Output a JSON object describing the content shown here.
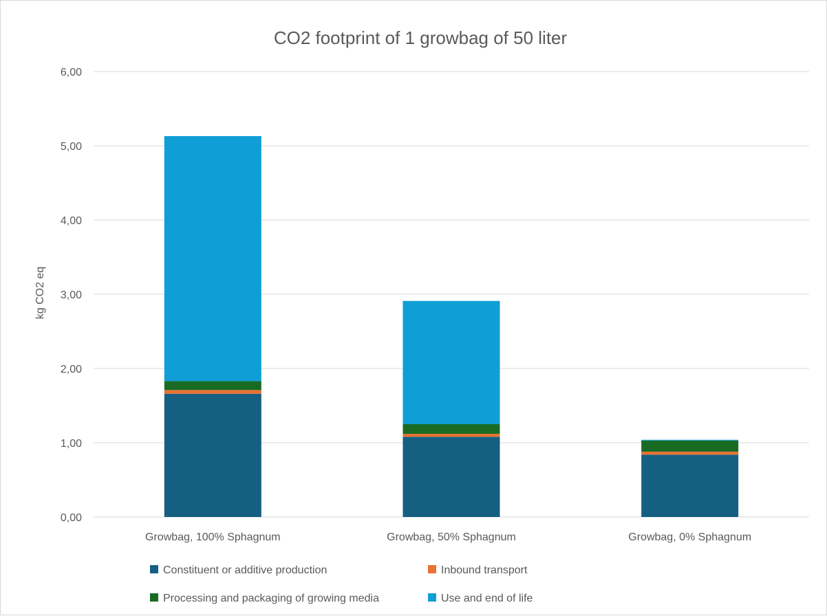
{
  "chart_data": {
    "type": "bar",
    "stacked": true,
    "title": "CO2 footprint of 1 growbag of 50 liter",
    "xlabel": "",
    "ylabel": "kg CO2 eq",
    "ylim": [
      0,
      6
    ],
    "yticks": [
      "0,00",
      "1,00",
      "2,00",
      "3,00",
      "4,00",
      "5,00",
      "6,00"
    ],
    "grid": true,
    "legend_position": "bottom",
    "categories": [
      "Growbag, 100% Sphagnum",
      "Growbag, 50% Sphagnum",
      "Growbag, 0% Sphagnum"
    ],
    "series": [
      {
        "name": "Constituent or additive production",
        "color": "#156082",
        "values": [
          1.66,
          1.08,
          0.84
        ]
      },
      {
        "name": "Inbound transport",
        "color": "#E97132",
        "values": [
          0.05,
          0.04,
          0.04
        ]
      },
      {
        "name": "Processing and packaging of growing media",
        "color": "#196B24",
        "values": [
          0.12,
          0.13,
          0.15
        ]
      },
      {
        "name": "Use and end of life",
        "color": "#0F9ED5",
        "values": [
          3.3,
          1.66,
          0.01
        ]
      }
    ]
  }
}
